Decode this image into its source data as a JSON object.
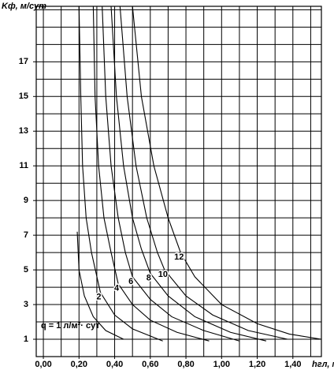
{
  "chart_data": {
    "type": "line",
    "y_label": "Kф, м/сут",
    "x_label": "hгл, м",
    "annotation": "q = 1 л/м²· сут",
    "color": "#000000",
    "xlim": [
      -0.04,
      1.56
    ],
    "ylim": [
      0,
      20.2
    ],
    "xticks": [
      {
        "value": 0,
        "label": "0,00"
      },
      {
        "value": 0.2,
        "label": "0,20"
      },
      {
        "value": 0.4,
        "label": "0,40"
      },
      {
        "value": 0.6,
        "label": "0,60"
      },
      {
        "value": 0.8,
        "label": "0,80"
      },
      {
        "value": 1.0,
        "label": "1,00"
      },
      {
        "value": 1.2,
        "label": "1,20"
      },
      {
        "value": 1.4,
        "label": "1,40"
      }
    ],
    "yticks": [
      1,
      3,
      5,
      7,
      9,
      11,
      13,
      15,
      17
    ],
    "xgrid": [
      0,
      0.1,
      0.2,
      0.3,
      0.4,
      0.5,
      0.6,
      0.7,
      0.8,
      0.9,
      1.0,
      1.1,
      1.2,
      1.3,
      1.4,
      1.5
    ],
    "ygrid": [
      1,
      2,
      3,
      4,
      5,
      6,
      7,
      8,
      9,
      10,
      11,
      12,
      13,
      14,
      15,
      16,
      17,
      18,
      19,
      20
    ],
    "grid": true,
    "series": [
      {
        "x": [
          0.19,
          0.2,
          0.23,
          0.28,
          0.35,
          0.45
        ],
        "values": [
          7.2,
          5,
          3.5,
          2.3,
          1.5,
          1.0
        ]
      },
      {
        "name": "2",
        "x": [
          0.2,
          0.21,
          0.22,
          0.24,
          0.27,
          0.32,
          0.4,
          0.5,
          0.67
        ],
        "values": [
          20.2,
          15,
          11,
          8,
          6,
          3.7,
          2.4,
          1.6,
          0.9
        ]
      },
      {
        "name": "4",
        "x": [
          0.28,
          0.29,
          0.31,
          0.34,
          0.38,
          0.42,
          0.5,
          0.6,
          0.75,
          0.93
        ],
        "values": [
          20.2,
          15,
          11,
          8,
          6,
          4.2,
          3,
          2.1,
          1.4,
          0.9
        ]
      },
      {
        "name": "6",
        "x": [
          0.33,
          0.35,
          0.38,
          0.42,
          0.46,
          0.5,
          0.6,
          0.72,
          0.9,
          1.1
        ],
        "values": [
          20.2,
          15,
          11,
          8,
          6,
          4.6,
          3.3,
          2.3,
          1.5,
          0.9
        ]
      },
      {
        "name": "8",
        "x": [
          0.38,
          0.41,
          0.45,
          0.5,
          0.55,
          0.6,
          0.7,
          0.85,
          1.05,
          1.25
        ],
        "values": [
          20.2,
          15,
          11,
          8,
          6.2,
          4.8,
          3.5,
          2.3,
          1.4,
          0.9
        ]
      },
      {
        "name": "10",
        "x": [
          0.43,
          0.47,
          0.52,
          0.58,
          0.64,
          0.68,
          0.8,
          0.95,
          1.15,
          1.37
        ],
        "values": [
          20.2,
          15,
          11,
          8,
          6,
          5,
          3.5,
          2.4,
          1.5,
          1.0
        ]
      },
      {
        "name": "12",
        "x": [
          0.5,
          0.55,
          0.62,
          0.7,
          0.77,
          0.85,
          1.0,
          1.2,
          1.38,
          1.56
        ],
        "values": [
          20.2,
          15,
          11,
          8,
          6,
          4.6,
          3,
          1.9,
          1.3,
          1.0
        ]
      }
    ]
  }
}
